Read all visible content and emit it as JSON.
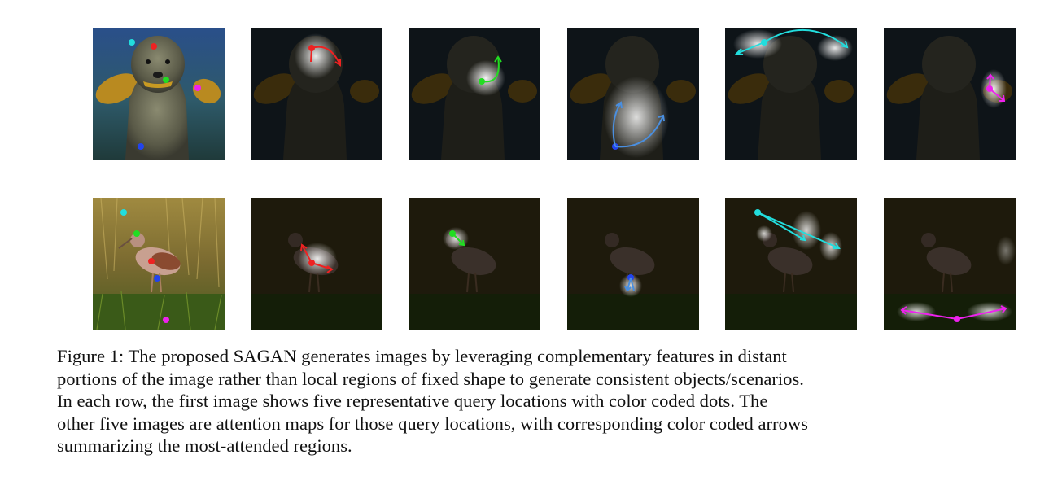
{
  "figure": {
    "colors": {
      "cyan": "#22dddd",
      "red": "#ee2222",
      "green": "#22dd22",
      "magenta": "#ee22ee",
      "blue": "#2244ee",
      "arrow_blue": "#4a8fe0"
    },
    "rows": [
      {
        "subject": "dog-photo",
        "query_colors": [
          "cyan",
          "red",
          "green",
          "magenta",
          "blue"
        ],
        "attention_colors": [
          "red",
          "green",
          "blue",
          "cyan",
          "magenta"
        ]
      },
      {
        "subject": "bird-photo",
        "query_colors": [
          "cyan",
          "green",
          "red",
          "blue",
          "magenta"
        ],
        "attention_colors": [
          "red",
          "green",
          "blue",
          "cyan",
          "magenta"
        ]
      }
    ],
    "caption_lines": [
      "Figure 1: The proposed SAGAN generates images by leveraging complementary features in distant",
      "portions of the image rather than local regions of fixed shape to generate consistent objects/scenarios.",
      "In each row, the first image shows five representative query locations with color coded dots.  The",
      "other five images are attention maps for those query locations, with corresponding color coded arrows",
      "summarizing the most-attended regions."
    ]
  }
}
